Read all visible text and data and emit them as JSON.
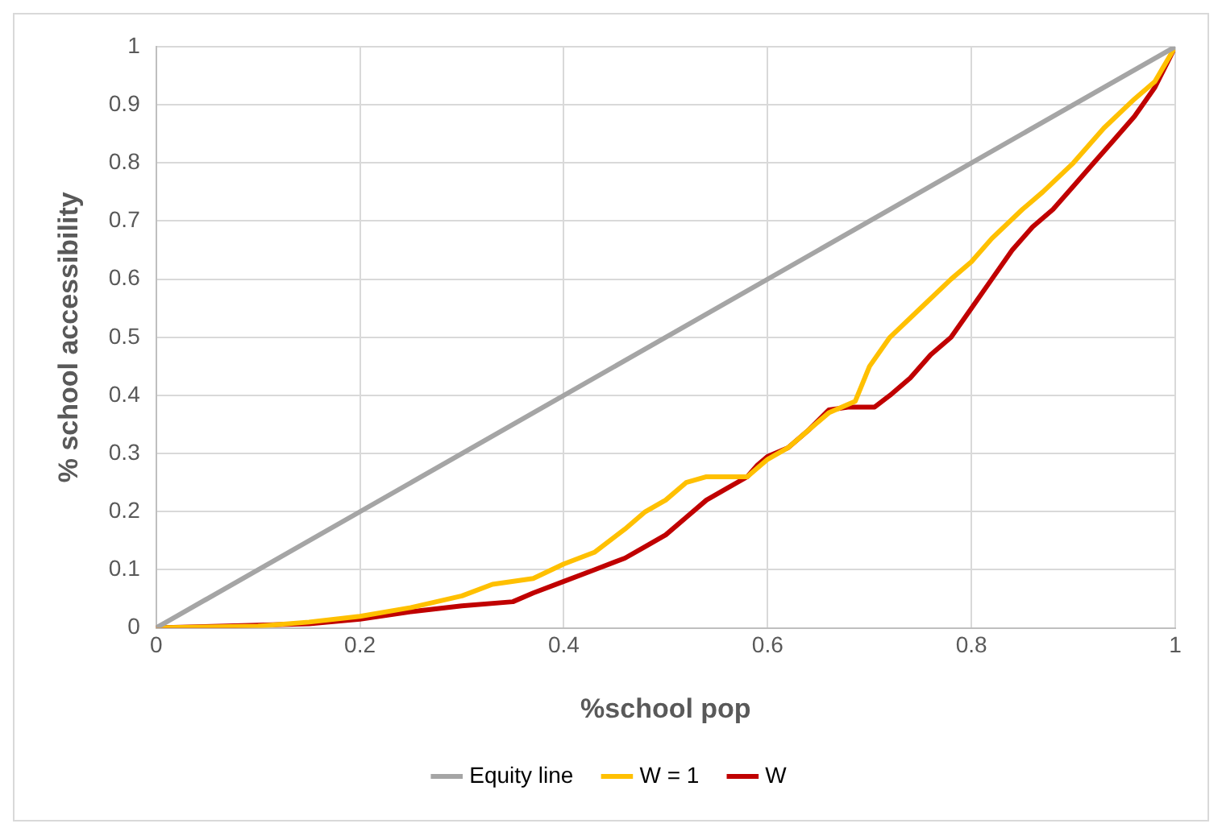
{
  "chart_data": {
    "type": "line",
    "xlabel": "%school pop",
    "ylabel": "% school accessibility",
    "xlim": [
      0,
      1
    ],
    "ylim": [
      0,
      1
    ],
    "xticks": [
      0,
      0.2,
      0.4,
      0.6,
      0.8,
      1
    ],
    "yticks": [
      0,
      0.1,
      0.2,
      0.3,
      0.4,
      0.5,
      0.6,
      0.7,
      0.8,
      0.9,
      1
    ],
    "grid": true,
    "legend": "bottom",
    "marker": "none",
    "line_style": "solid",
    "series": [
      {
        "name": "Equity line",
        "color": "#a5a5a5",
        "x": [
          0,
          1
        ],
        "values": [
          0,
          1
        ]
      },
      {
        "name": "W = 1",
        "color": "#ffc000",
        "x": [
          0,
          0.1,
          0.15,
          0.2,
          0.25,
          0.3,
          0.33,
          0.37,
          0.4,
          0.43,
          0.46,
          0.48,
          0.5,
          0.52,
          0.54,
          0.58,
          0.6,
          0.62,
          0.64,
          0.66,
          0.686,
          0.7,
          0.72,
          0.75,
          0.78,
          0.8,
          0.82,
          0.85,
          0.87,
          0.9,
          0.93,
          0.96,
          0.98,
          1
        ],
        "values": [
          0,
          0.003,
          0.01,
          0.02,
          0.035,
          0.055,
          0.075,
          0.085,
          0.11,
          0.13,
          0.17,
          0.2,
          0.22,
          0.25,
          0.26,
          0.26,
          0.29,
          0.31,
          0.34,
          0.37,
          0.39,
          0.45,
          0.5,
          0.55,
          0.6,
          0.63,
          0.67,
          0.72,
          0.75,
          0.8,
          0.86,
          0.91,
          0.94,
          1
        ]
      },
      {
        "name": "W",
        "color": "#c00000",
        "x": [
          0,
          0.15,
          0.2,
          0.25,
          0.3,
          0.35,
          0.37,
          0.4,
          0.43,
          0.46,
          0.48,
          0.5,
          0.52,
          0.54,
          0.56,
          0.58,
          0.59,
          0.6,
          0.62,
          0.64,
          0.66,
          0.68,
          0.705,
          0.72,
          0.74,
          0.76,
          0.78,
          0.8,
          0.82,
          0.84,
          0.86,
          0.88,
          0.9,
          0.92,
          0.94,
          0.96,
          0.98,
          1
        ],
        "values": [
          0,
          0.007,
          0.015,
          0.028,
          0.038,
          0.045,
          0.06,
          0.08,
          0.1,
          0.12,
          0.14,
          0.16,
          0.19,
          0.22,
          0.24,
          0.26,
          0.28,
          0.295,
          0.31,
          0.34,
          0.375,
          0.38,
          0.38,
          0.4,
          0.43,
          0.47,
          0.5,
          0.55,
          0.6,
          0.65,
          0.69,
          0.72,
          0.76,
          0.8,
          0.84,
          0.88,
          0.93,
          1
        ]
      }
    ]
  }
}
